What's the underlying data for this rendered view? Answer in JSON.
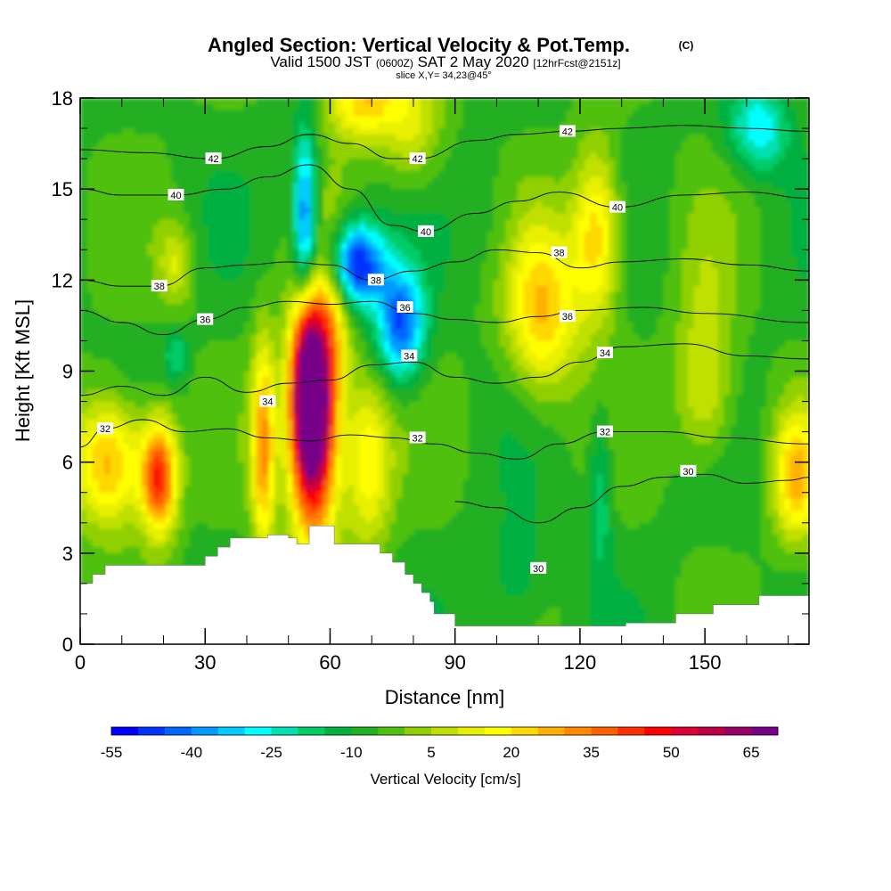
{
  "chart_data": {
    "type": "heatmap",
    "title": "Angled Section: Vertical Velocity & Pot.Temp.",
    "title_suffix": "(C)",
    "subtitle": {
      "part1": "Valid 1500 JST",
      "part2": "(0600Z)",
      "part3": "SAT 2 May 2020",
      "part4": "[12hrFcst@2151z]"
    },
    "slice_label": "slice X,Y= 34,23@45°",
    "xlabel": "Distance [nm]",
    "ylabel": "Height [Kft MSL]",
    "xlim": [
      0,
      175
    ],
    "ylim": [
      0,
      18
    ],
    "x_ticks": [
      0,
      30,
      60,
      90,
      120,
      150
    ],
    "y_ticks": [
      0,
      3,
      6,
      9,
      12,
      15,
      18
    ],
    "colorbar": {
      "title": "Vertical Velocity [cm/s]",
      "min": -55,
      "step": 5,
      "tick_labels": [
        -55,
        -40,
        -25,
        -10,
        5,
        20,
        35,
        50,
        65
      ],
      "colors": [
        "#0000ff",
        "#0033ff",
        "#0066ff",
        "#0099ff",
        "#00ccff",
        "#00ffff",
        "#00e0b0",
        "#00cc66",
        "#00b040",
        "#20b020",
        "#50c010",
        "#90d000",
        "#c0e000",
        "#e8f000",
        "#ffff00",
        "#ffd800",
        "#ffb000",
        "#ff8800",
        "#ff6000",
        "#ff3000",
        "#ff0000",
        "#dd0033",
        "#bb0044",
        "#990066",
        "#770088"
      ]
    },
    "contour_labels": [
      {
        "text": "42",
        "x": 32,
        "y": 16.0
      },
      {
        "text": "40",
        "x": 23,
        "y": 14.8
      },
      {
        "text": "38",
        "x": 19,
        "y": 11.8
      },
      {
        "text": "36",
        "x": 30,
        "y": 10.7
      },
      {
        "text": "34",
        "x": 45,
        "y": 8.0
      },
      {
        "text": "32",
        "x": 6,
        "y": 7.1
      },
      {
        "text": "42",
        "x": 81,
        "y": 16.0
      },
      {
        "text": "40",
        "x": 83,
        "y": 13.6
      },
      {
        "text": "38",
        "x": 71,
        "y": 12.0
      },
      {
        "text": "36",
        "x": 78,
        "y": 11.1
      },
      {
        "text": "34",
        "x": 79,
        "y": 9.5
      },
      {
        "text": "32",
        "x": 81,
        "y": 6.8
      },
      {
        "text": "42",
        "x": 117,
        "y": 16.9
      },
      {
        "text": "40",
        "x": 129,
        "y": 14.4
      },
      {
        "text": "38",
        "x": 115,
        "y": 12.9
      },
      {
        "text": "36",
        "x": 117,
        "y": 10.8
      },
      {
        "text": "34",
        "x": 126,
        "y": 9.6
      },
      {
        "text": "32",
        "x": 126,
        "y": 7.0
      },
      {
        "text": "30",
        "x": 146,
        "y": 5.7
      },
      {
        "text": "30",
        "x": 110,
        "y": 2.5
      }
    ],
    "contour_levels": [
      {
        "level": 30,
        "points": [
          [
            90,
            4.7
          ],
          [
            100,
            4.5
          ],
          [
            110,
            4.0
          ],
          [
            120,
            4.5
          ],
          [
            130,
            5.2
          ],
          [
            140,
            5.5
          ],
          [
            150,
            5.6
          ],
          [
            160,
            5.3
          ],
          [
            170,
            5.4
          ],
          [
            175,
            5.5
          ]
        ]
      },
      {
        "level": 32,
        "points": [
          [
            0,
            6.5
          ],
          [
            6,
            7.1
          ],
          [
            15,
            7.4
          ],
          [
            25,
            7.0
          ],
          [
            35,
            7.1
          ],
          [
            45,
            6.8
          ],
          [
            55,
            6.7
          ],
          [
            65,
            6.9
          ],
          [
            75,
            6.8
          ],
          [
            85,
            6.6
          ],
          [
            95,
            6.3
          ],
          [
            105,
            6.1
          ],
          [
            115,
            6.6
          ],
          [
            126,
            7.0
          ],
          [
            140,
            7.0
          ],
          [
            155,
            6.8
          ],
          [
            175,
            6.6
          ]
        ]
      },
      {
        "level": 34,
        "points": [
          [
            0,
            8.2
          ],
          [
            10,
            8.5
          ],
          [
            20,
            8.2
          ],
          [
            30,
            8.8
          ],
          [
            40,
            8.3
          ],
          [
            50,
            8.6
          ],
          [
            60,
            8.7
          ],
          [
            70,
            9.2
          ],
          [
            80,
            9.3
          ],
          [
            90,
            8.8
          ],
          [
            100,
            8.6
          ],
          [
            110,
            8.8
          ],
          [
            120,
            9.3
          ],
          [
            130,
            9.8
          ],
          [
            145,
            9.9
          ],
          [
            160,
            9.5
          ],
          [
            175,
            9.4
          ]
        ]
      },
      {
        "level": 36,
        "points": [
          [
            0,
            11.0
          ],
          [
            10,
            10.6
          ],
          [
            20,
            10.2
          ],
          [
            30,
            10.7
          ],
          [
            40,
            11.1
          ],
          [
            50,
            11.3
          ],
          [
            60,
            11.2
          ],
          [
            70,
            11.3
          ],
          [
            80,
            10.9
          ],
          [
            90,
            10.7
          ],
          [
            100,
            10.6
          ],
          [
            110,
            10.8
          ],
          [
            120,
            11.0
          ],
          [
            135,
            11.1
          ],
          [
            150,
            10.9
          ],
          [
            175,
            10.6
          ]
        ]
      },
      {
        "level": 38,
        "points": [
          [
            0,
            12.0
          ],
          [
            10,
            11.8
          ],
          [
            19,
            11.8
          ],
          [
            30,
            12.4
          ],
          [
            40,
            12.5
          ],
          [
            50,
            12.6
          ],
          [
            60,
            12.5
          ],
          [
            70,
            12.0
          ],
          [
            80,
            12.3
          ],
          [
            90,
            12.6
          ],
          [
            100,
            13.0
          ],
          [
            110,
            12.9
          ],
          [
            120,
            12.4
          ],
          [
            130,
            12.6
          ],
          [
            145,
            12.7
          ],
          [
            160,
            12.5
          ],
          [
            175,
            12.3
          ]
        ]
      },
      {
        "level": 40,
        "points": [
          [
            0,
            15.0
          ],
          [
            10,
            14.8
          ],
          [
            23,
            14.8
          ],
          [
            35,
            15.0
          ],
          [
            45,
            15.4
          ],
          [
            55,
            15.8
          ],
          [
            65,
            15.0
          ],
          [
            75,
            13.8
          ],
          [
            83,
            13.6
          ],
          [
            95,
            14.2
          ],
          [
            105,
            14.6
          ],
          [
            115,
            14.9
          ],
          [
            129,
            14.4
          ],
          [
            145,
            14.8
          ],
          [
            160,
            14.9
          ],
          [
            175,
            14.7
          ]
        ]
      },
      {
        "level": 42,
        "points": [
          [
            0,
            16.3
          ],
          [
            15,
            16.2
          ],
          [
            32,
            16.0
          ],
          [
            45,
            16.4
          ],
          [
            55,
            16.8
          ],
          [
            65,
            16.5
          ],
          [
            75,
            16.0
          ],
          [
            81,
            16.0
          ],
          [
            95,
            16.6
          ],
          [
            105,
            16.8
          ],
          [
            117,
            16.9
          ],
          [
            130,
            17.0
          ],
          [
            145,
            17.1
          ],
          [
            160,
            17.0
          ],
          [
            175,
            16.9
          ]
        ]
      }
    ],
    "terrain": [
      [
        0,
        2.0
      ],
      [
        3,
        2.3
      ],
      [
        6,
        2.6
      ],
      [
        15,
        2.6
      ],
      [
        24,
        2.6
      ],
      [
        30,
        2.9
      ],
      [
        33,
        3.2
      ],
      [
        36,
        3.5
      ],
      [
        45,
        3.6
      ],
      [
        50,
        3.5
      ],
      [
        52,
        3.3
      ],
      [
        55,
        3.9
      ],
      [
        58,
        3.9
      ],
      [
        61,
        3.3
      ],
      [
        70,
        3.3
      ],
      [
        72,
        3.0
      ],
      [
        75,
        2.7
      ],
      [
        78,
        2.3
      ],
      [
        80,
        2.0
      ],
      [
        82,
        1.7
      ],
      [
        84,
        1.4
      ],
      [
        85,
        1.0
      ],
      [
        90,
        0.6
      ],
      [
        100,
        0.6
      ],
      [
        110,
        0.6
      ],
      [
        120,
        0.6
      ],
      [
        130,
        0.6
      ],
      [
        131,
        0.7
      ],
      [
        140,
        0.7
      ],
      [
        143,
        1.0
      ],
      [
        150,
        1.0
      ],
      [
        152,
        1.3
      ],
      [
        160,
        1.3
      ],
      [
        163,
        1.6
      ],
      [
        175,
        1.6
      ]
    ],
    "vertical_velocity_features": [
      {
        "x": 56,
        "y": 7.0,
        "sx": 4,
        "sy": 2.5,
        "value": 70
      },
      {
        "x": 55,
        "y": 9.0,
        "sx": 3,
        "sy": 2.0,
        "value": 45
      },
      {
        "x": 19,
        "y": 5.5,
        "sx": 3,
        "sy": 1.3,
        "value": 45
      },
      {
        "x": 7,
        "y": 6.0,
        "sx": 6,
        "sy": 1.5,
        "value": 30
      },
      {
        "x": 44,
        "y": 6.5,
        "sx": 2,
        "sy": 2.5,
        "value": 30
      },
      {
        "x": 69,
        "y": 6.0,
        "sx": 4,
        "sy": 2.0,
        "value": 20
      },
      {
        "x": 111,
        "y": 11.0,
        "sx": 6,
        "sy": 2.0,
        "value": 25
      },
      {
        "x": 124,
        "y": 13.5,
        "sx": 4,
        "sy": 2.0,
        "value": 25
      },
      {
        "x": 68,
        "y": 18.0,
        "sx": 6,
        "sy": 1.0,
        "value": 25
      },
      {
        "x": 80,
        "y": 17.0,
        "sx": 5,
        "sy": 1.5,
        "value": 10
      },
      {
        "x": 172,
        "y": 5.5,
        "sx": 4,
        "sy": 1.5,
        "value": 25
      },
      {
        "x": 23,
        "y": 12.5,
        "sx": 3,
        "sy": 1.0,
        "value": 10
      },
      {
        "x": 61,
        "y": 11.0,
        "sx": 3,
        "sy": 2.0,
        "value": 15
      },
      {
        "x": 54,
        "y": 14.0,
        "sx": 2,
        "sy": 2.0,
        "value": -45
      },
      {
        "x": 66,
        "y": 12.5,
        "sx": 5,
        "sy": 1.0,
        "value": -55
      },
      {
        "x": 77,
        "y": 10.5,
        "sx": 4,
        "sy": 1.3,
        "value": -45
      },
      {
        "x": 23,
        "y": 9.5,
        "sx": 2,
        "sy": 0.6,
        "value": -20
      },
      {
        "x": 163,
        "y": 17.0,
        "sx": 5,
        "sy": 1.0,
        "value": -30
      },
      {
        "x": 105,
        "y": 2.0,
        "sx": 5,
        "sy": 1.5,
        "value": -15
      },
      {
        "x": 125,
        "y": 5.0,
        "sx": 2,
        "sy": 2.0,
        "value": -20
      },
      {
        "x": 150,
        "y": 10.0,
        "sx": 5,
        "sy": 2.5,
        "value": 5
      },
      {
        "x": 150,
        "y": 8.0,
        "sx": 5,
        "sy": 1.5,
        "value": 5
      },
      {
        "x": 100,
        "y": 14.0,
        "sx": 5,
        "sy": 1.5,
        "value": -10
      }
    ],
    "background_value": -6
  }
}
